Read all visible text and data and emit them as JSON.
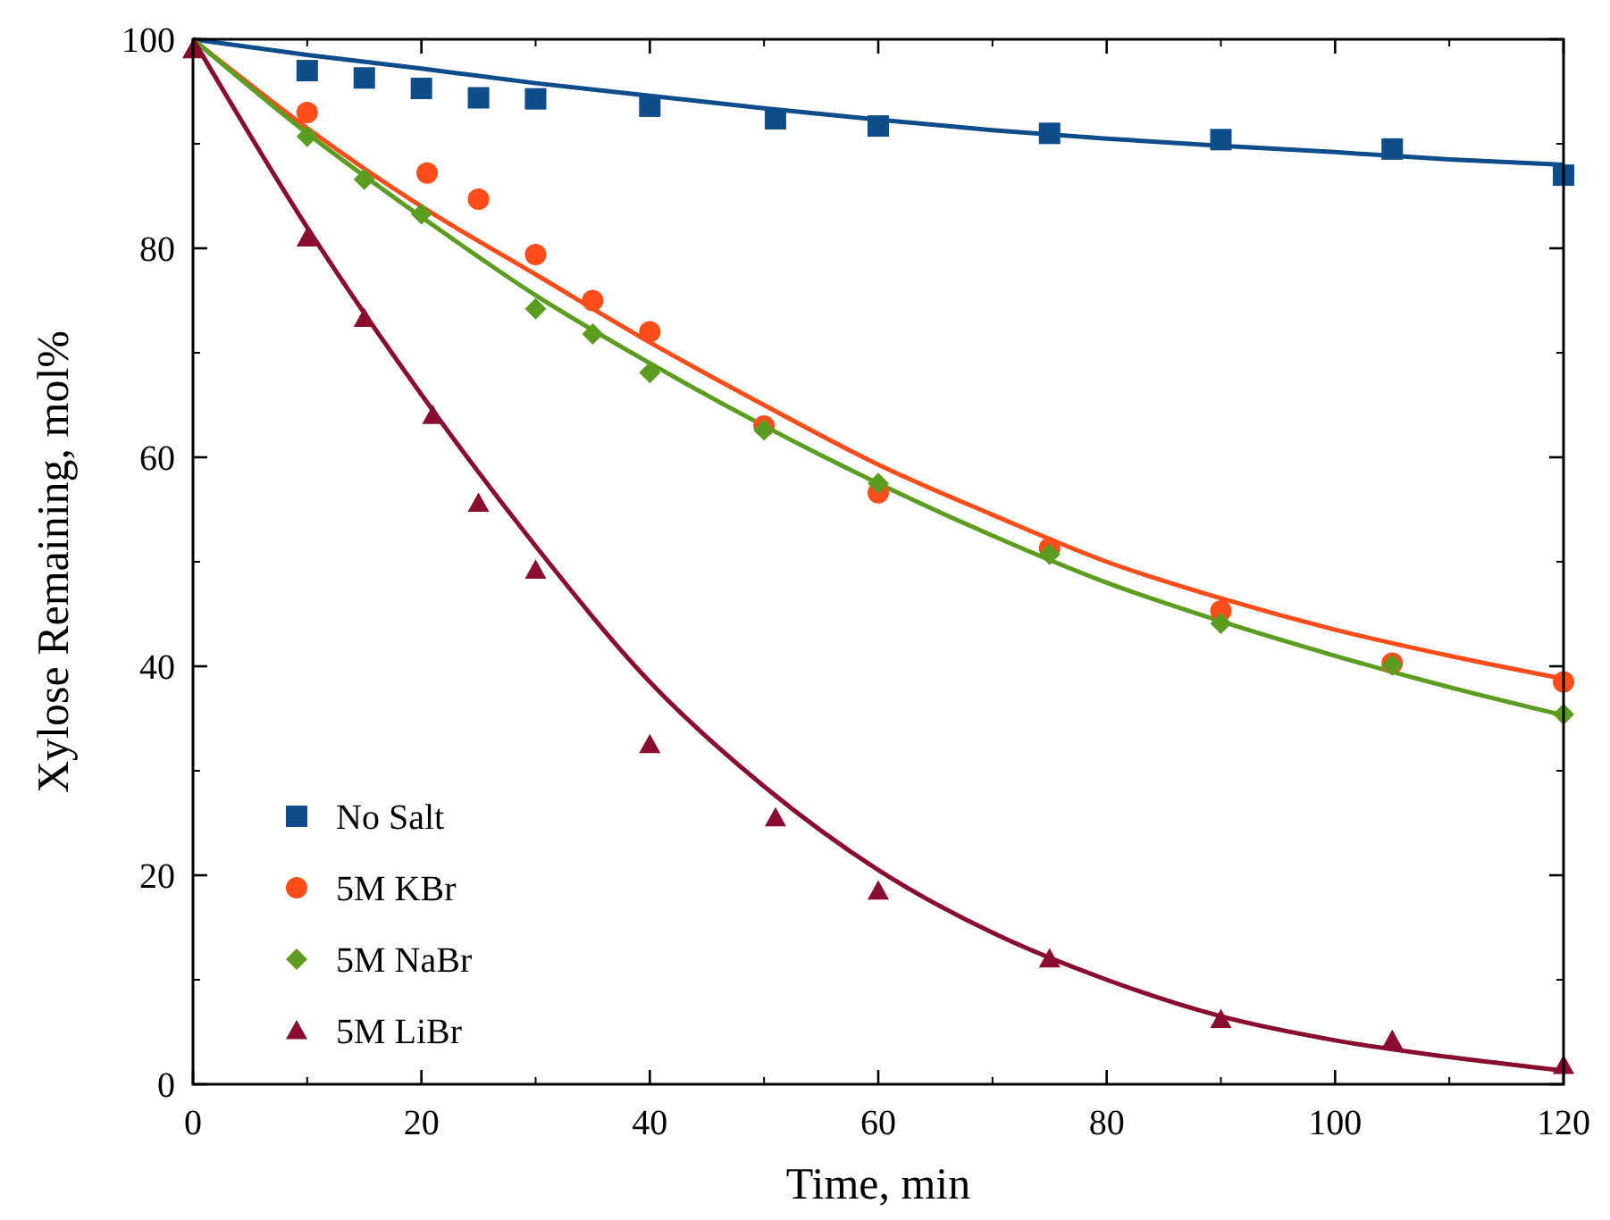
{
  "chart_data": {
    "type": "scatter",
    "xlabel": "Time, min",
    "ylabel": "Xylose Remaining, mol%",
    "xlim": [
      0,
      120
    ],
    "ylim": [
      0,
      100
    ],
    "xticks": [
      0,
      20,
      40,
      60,
      80,
      100,
      120
    ],
    "yticks": [
      0,
      20,
      40,
      60,
      80,
      100
    ],
    "grid": false,
    "legend": "bottom left",
    "series": [
      {
        "name": "No Salt",
        "marker": "square",
        "color": "#0f4c8c",
        "x": [
          10,
          15,
          20,
          25,
          30,
          40,
          51,
          60,
          75,
          90,
          105,
          120
        ],
        "values": [
          97,
          96.3,
          95.3,
          94.4,
          94.3,
          93.6,
          92.4,
          91.7,
          91,
          90.4,
          89.5,
          87
        ]
      },
      {
        "name": "5M KBr",
        "marker": "circle",
        "color": "#ff4d1a",
        "x": [
          10,
          20.5,
          25,
          30,
          35,
          40,
          50,
          60,
          75,
          90,
          105,
          120
        ],
        "values": [
          93,
          87.2,
          84.7,
          79.4,
          75,
          72,
          63,
          56.6,
          51.3,
          45.3,
          40.3,
          38.5
        ]
      },
      {
        "name": "5M NaBr",
        "marker": "diamond",
        "color": "#5b9e1f",
        "x": [
          10,
          15,
          20,
          30,
          35,
          40,
          50,
          60,
          75,
          90,
          105,
          120
        ],
        "values": [
          90.7,
          86.6,
          83.3,
          74.2,
          71.8,
          68.1,
          62.6,
          57.5,
          50.7,
          44.1,
          40.1,
          35.4
        ]
      },
      {
        "name": "5M LiBr",
        "marker": "triangle",
        "color": "#8a0c2f",
        "x": [
          0,
          10,
          15,
          21,
          25,
          30,
          40,
          51,
          60,
          75,
          90,
          105,
          120
        ],
        "values": [
          99,
          81,
          73.3,
          64,
          55.6,
          49.2,
          32.5,
          25.5,
          18.5,
          12,
          6.2,
          4.2,
          1.8
        ]
      },
      {
        "type": "line",
        "line_style": "solid",
        "color": "#0f4c8c",
        "x": [
          0,
          10,
          20,
          30,
          40,
          50,
          60,
          70,
          80,
          90,
          100,
          110,
          120
        ],
        "values": [
          100,
          98.5,
          97.2,
          95.8,
          94.6,
          93.4,
          92.3,
          91.3,
          90.5,
          89.8,
          89.2,
          88.5,
          88
        ]
      },
      {
        "type": "line",
        "line_style": "solid",
        "color": "#ff4d1a",
        "x": [
          0,
          10,
          20,
          30,
          40,
          50,
          60,
          70,
          80,
          90,
          100,
          110,
          120
        ],
        "values": [
          100,
          91.5,
          84,
          77.5,
          71,
          65,
          59.3,
          54.5,
          50,
          46.5,
          43.5,
          41,
          38.8
        ]
      },
      {
        "type": "line",
        "line_style": "solid",
        "color": "#5b9e1f",
        "x": [
          0,
          10,
          20,
          30,
          40,
          50,
          60,
          70,
          80,
          90,
          100,
          110,
          120
        ],
        "values": [
          100,
          91,
          83,
          75.5,
          69,
          63,
          57.5,
          52.5,
          48,
          44.3,
          41,
          38,
          35.3
        ]
      },
      {
        "type": "line",
        "line_style": "solid",
        "color": "#8a0c2f",
        "x": [
          0,
          10,
          20,
          30,
          40,
          50,
          60,
          70,
          80,
          90,
          100,
          110,
          120
        ],
        "values": [
          100,
          82,
          66,
          51.5,
          38.5,
          28.5,
          20.5,
          14.5,
          10,
          6.5,
          4.2,
          2.6,
          1.3
        ]
      }
    ]
  }
}
